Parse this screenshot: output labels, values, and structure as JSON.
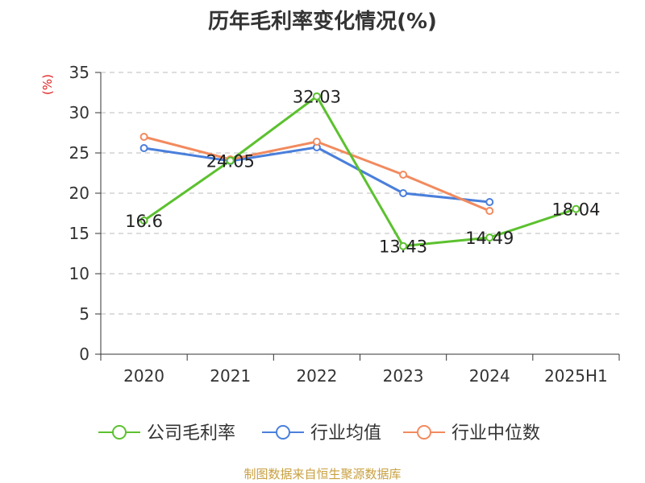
{
  "title": "历年毛利率变化情况(%)",
  "footer": "制图数据来自恒生聚源数据库",
  "colors": {
    "title": "#333333",
    "axis": "#333333",
    "grid": "#bbbbbb",
    "unit": "#e02020",
    "footer": "#c8a040",
    "company": "#5cc12f",
    "industry_avg": "#4a7fdb",
    "industry_median": "#f28a5e"
  },
  "chart_data": {
    "type": "line",
    "title": "历年毛利率变化情况(%)",
    "ylabel": "(%)",
    "xlabel": "",
    "categories": [
      "2020",
      "2021",
      "2022",
      "2023",
      "2024",
      "2025H1"
    ],
    "ylim": [
      0,
      35
    ],
    "yticks": [
      0,
      5,
      10,
      15,
      20,
      25,
      30,
      35
    ],
    "grid": "horizontal dashed",
    "legend": "bottom",
    "series": [
      {
        "name": "公司毛利率",
        "color": "#5cc12f",
        "values": [
          16.6,
          24.05,
          32.03,
          13.43,
          14.49,
          18.04
        ],
        "labels": [
          "16.6",
          "24.05",
          "32.03",
          "13.43",
          "14.49",
          "18.04"
        ]
      },
      {
        "name": "行业均值",
        "color": "#4a7fdb",
        "values": [
          25.6,
          24.0,
          25.7,
          20.0,
          18.9,
          null
        ]
      },
      {
        "name": "行业中位数",
        "color": "#f28a5e",
        "values": [
          27.0,
          24.2,
          26.4,
          22.3,
          17.8,
          null
        ]
      }
    ]
  }
}
